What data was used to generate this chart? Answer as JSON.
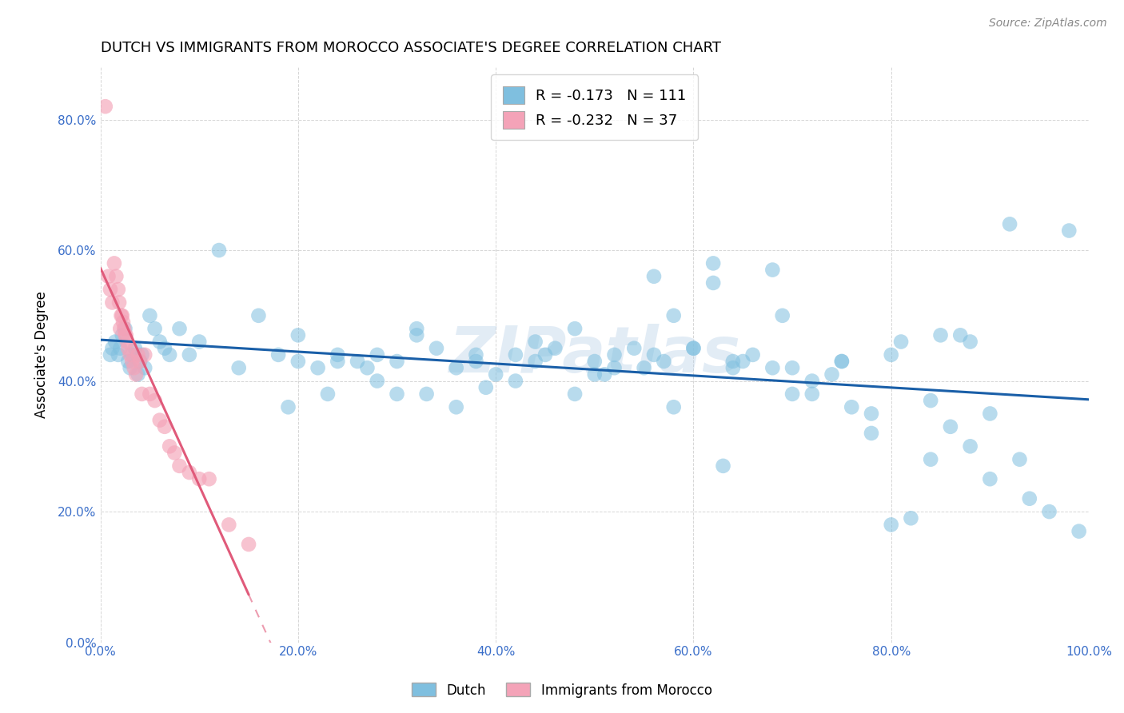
{
  "title": "DUTCH VS IMMIGRANTS FROM MOROCCO ASSOCIATE'S DEGREE CORRELATION CHART",
  "source": "Source: ZipAtlas.com",
  "ylabel": "Associate's Degree",
  "xlabel": "",
  "xlim": [
    0.0,
    1.0
  ],
  "ylim": [
    0.0,
    0.88
  ],
  "yticks": [
    0.0,
    0.2,
    0.4,
    0.6,
    0.8
  ],
  "ytick_labels": [
    "0.0%",
    "20.0%",
    "40.0%",
    "60.0%",
    "80.0%"
  ],
  "xticks": [
    0.0,
    0.2,
    0.4,
    0.6,
    0.8,
    1.0
  ],
  "xtick_labels": [
    "0.0%",
    "20.0%",
    "40.0%",
    "60.0%",
    "80.0%",
    "100.0%"
  ],
  "watermark": "ZIPatlas",
  "dutch_color": "#7fbfdf",
  "morocco_color": "#f4a3b8",
  "dutch_line_color": "#1a5fa8",
  "morocco_line_color": "#e05a7a",
  "dutch_R": -0.173,
  "dutch_N": 111,
  "morocco_R": -0.232,
  "morocco_N": 37,
  "legend_label_dutch": "Dutch",
  "legend_label_morocco": "Immigrants from Morocco",
  "dutch_x": [
    0.01,
    0.012,
    0.015,
    0.018,
    0.02,
    0.022,
    0.025,
    0.028,
    0.03,
    0.032,
    0.035,
    0.038,
    0.04,
    0.042,
    0.045,
    0.05,
    0.055,
    0.06,
    0.065,
    0.07,
    0.08,
    0.09,
    0.1,
    0.12,
    0.14,
    0.16,
    0.18,
    0.2,
    0.22,
    0.24,
    0.26,
    0.28,
    0.3,
    0.32,
    0.34,
    0.36,
    0.38,
    0.4,
    0.42,
    0.44,
    0.46,
    0.48,
    0.5,
    0.52,
    0.54,
    0.56,
    0.58,
    0.6,
    0.62,
    0.64,
    0.66,
    0.68,
    0.7,
    0.72,
    0.74,
    0.76,
    0.78,
    0.8,
    0.82,
    0.84,
    0.86,
    0.88,
    0.9,
    0.92,
    0.94,
    0.96,
    0.98,
    0.2,
    0.24,
    0.28,
    0.32,
    0.38,
    0.44,
    0.5,
    0.56,
    0.62,
    0.68,
    0.19,
    0.23,
    0.27,
    0.33,
    0.39,
    0.45,
    0.51,
    0.57,
    0.63,
    0.69,
    0.75,
    0.81,
    0.87,
    0.93,
    0.99,
    0.55,
    0.6,
    0.65,
    0.7,
    0.75,
    0.8,
    0.85,
    0.88,
    0.48,
    0.36,
    0.3,
    0.42,
    0.52,
    0.58,
    0.64,
    0.72,
    0.78,
    0.84,
    0.9
  ],
  "dutch_y": [
    0.44,
    0.45,
    0.46,
    0.44,
    0.45,
    0.47,
    0.48,
    0.43,
    0.42,
    0.44,
    0.45,
    0.41,
    0.43,
    0.44,
    0.42,
    0.5,
    0.48,
    0.46,
    0.45,
    0.44,
    0.48,
    0.44,
    0.46,
    0.6,
    0.42,
    0.5,
    0.44,
    0.43,
    0.42,
    0.44,
    0.43,
    0.44,
    0.43,
    0.48,
    0.45,
    0.42,
    0.44,
    0.41,
    0.44,
    0.43,
    0.45,
    0.48,
    0.43,
    0.42,
    0.45,
    0.56,
    0.5,
    0.45,
    0.58,
    0.43,
    0.44,
    0.42,
    0.38,
    0.4,
    0.41,
    0.36,
    0.35,
    0.18,
    0.19,
    0.37,
    0.33,
    0.3,
    0.25,
    0.64,
    0.22,
    0.2,
    0.63,
    0.47,
    0.43,
    0.4,
    0.47,
    0.43,
    0.46,
    0.41,
    0.44,
    0.55,
    0.57,
    0.36,
    0.38,
    0.42,
    0.38,
    0.39,
    0.44,
    0.41,
    0.43,
    0.27,
    0.5,
    0.43,
    0.46,
    0.47,
    0.28,
    0.17,
    0.42,
    0.45,
    0.43,
    0.42,
    0.43,
    0.44,
    0.47,
    0.46,
    0.38,
    0.36,
    0.38,
    0.4,
    0.44,
    0.36,
    0.42,
    0.38,
    0.32,
    0.28,
    0.35
  ],
  "morocco_x": [
    0.005,
    0.008,
    0.01,
    0.012,
    0.014,
    0.016,
    0.018,
    0.019,
    0.02,
    0.021,
    0.022,
    0.023,
    0.024,
    0.025,
    0.026,
    0.027,
    0.028,
    0.03,
    0.032,
    0.034,
    0.036,
    0.038,
    0.04,
    0.042,
    0.045,
    0.05,
    0.055,
    0.06,
    0.065,
    0.07,
    0.075,
    0.08,
    0.09,
    0.1,
    0.11,
    0.13,
    0.15
  ],
  "morocco_y": [
    0.82,
    0.56,
    0.54,
    0.52,
    0.58,
    0.56,
    0.54,
    0.52,
    0.48,
    0.5,
    0.5,
    0.49,
    0.48,
    0.47,
    0.47,
    0.46,
    0.45,
    0.44,
    0.43,
    0.42,
    0.41,
    0.44,
    0.43,
    0.38,
    0.44,
    0.38,
    0.37,
    0.34,
    0.33,
    0.3,
    0.29,
    0.27,
    0.26,
    0.25,
    0.25,
    0.18,
    0.15
  ]
}
